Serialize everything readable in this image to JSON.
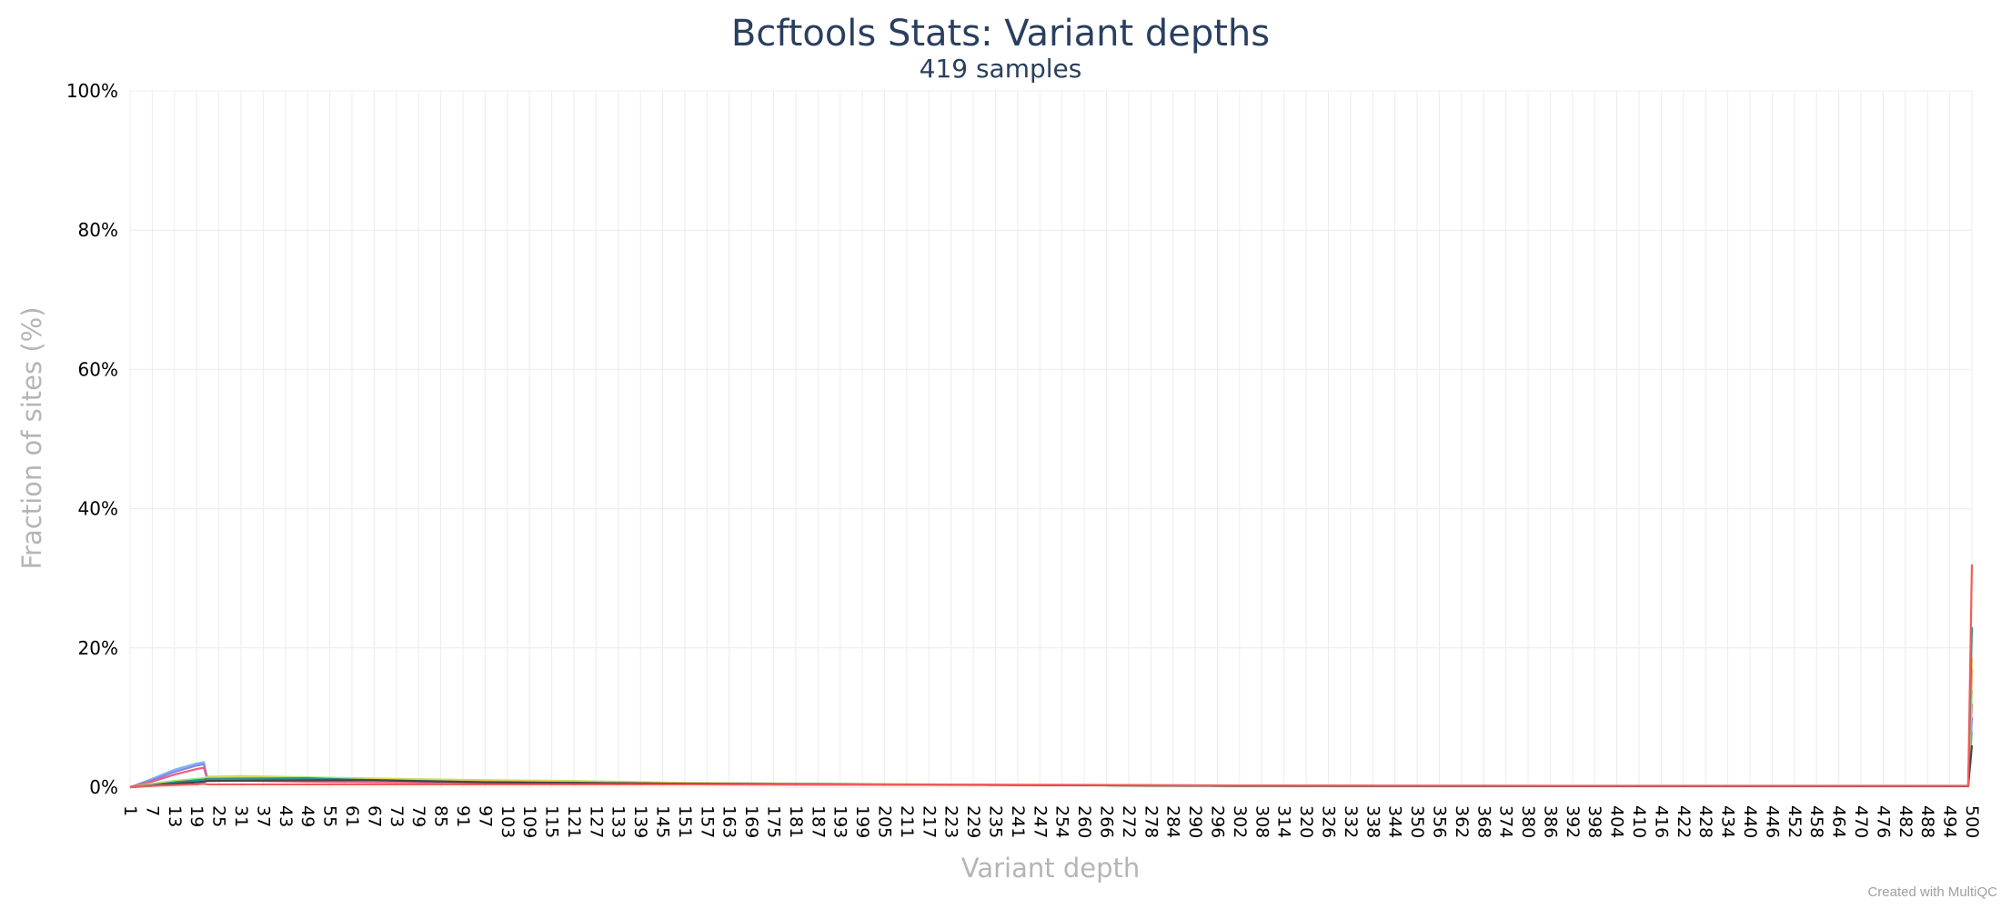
{
  "chart_data": {
    "type": "line",
    "title": "Bcftools Stats: Variant depths",
    "subtitle": "419 samples",
    "xlabel": "Variant depth",
    "ylabel": "Fraction of sites (%)",
    "ylim": [
      0,
      100
    ],
    "y_ticks": [
      0,
      20,
      40,
      60,
      80,
      100
    ],
    "y_tick_labels": [
      "0%",
      "20%",
      "40%",
      "60%",
      "80%",
      "100%"
    ],
    "x_tick_labels": [
      "1",
      "7",
      "13",
      "19",
      "25",
      "31",
      "37",
      "43",
      "49",
      "55",
      "61",
      "67",
      "73",
      "79",
      "85",
      "91",
      "97",
      "103",
      "109",
      "115",
      "121",
      "127",
      "133",
      "139",
      "145",
      "151",
      "157",
      "163",
      "169",
      "175",
      "181",
      "187",
      "193",
      "199",
      "205",
      "211",
      "217",
      "223",
      "229",
      "235",
      "241",
      "247",
      "254",
      "260",
      "266",
      "272",
      "278",
      "284",
      "290",
      "296",
      "302",
      "308",
      "314",
      "320",
      "326",
      "332",
      "338",
      "344",
      "350",
      "356",
      "362",
      "368",
      "374",
      "380",
      "386",
      "392",
      "398",
      "404",
      "410",
      "416",
      "422",
      "428",
      "434",
      "440",
      "446",
      "452",
      "458",
      "464",
      "470",
      "476",
      "482",
      "488",
      "494",
      "500"
    ],
    "grid": true,
    "legend": "none",
    "series": [
      {
        "color": "#7cb5ec",
        "points": [
          [
            1,
            0
          ],
          [
            7,
            1.2
          ],
          [
            13,
            2.5
          ],
          [
            19,
            3.4
          ],
          [
            21,
            3.6
          ],
          [
            22,
            1.0
          ],
          [
            49,
            0.9
          ],
          [
            97,
            0.6
          ],
          [
            151,
            0.4
          ],
          [
            250,
            0.3
          ],
          [
            300,
            0.2
          ],
          [
            400,
            0.15
          ],
          [
            499,
            0.15
          ],
          [
            500,
            8
          ]
        ]
      },
      {
        "color": "#8085e9",
        "points": [
          [
            1,
            0
          ],
          [
            7,
            1.0
          ],
          [
            13,
            2.2
          ],
          [
            19,
            3.1
          ],
          [
            21,
            3.3
          ],
          [
            22,
            1.2
          ],
          [
            49,
            1.1
          ],
          [
            97,
            0.7
          ],
          [
            151,
            0.5
          ],
          [
            250,
            0.3
          ],
          [
            300,
            0.2
          ],
          [
            400,
            0.15
          ],
          [
            499,
            0.15
          ],
          [
            500,
            10
          ]
        ]
      },
      {
        "color": "#f15c80",
        "points": [
          [
            1,
            0
          ],
          [
            7,
            0.8
          ],
          [
            13,
            1.8
          ],
          [
            19,
            2.6
          ],
          [
            21,
            2.8
          ],
          [
            22,
            1.0
          ],
          [
            49,
            0.8
          ],
          [
            97,
            0.6
          ],
          [
            151,
            0.4
          ],
          [
            250,
            0.3
          ],
          [
            300,
            0.2
          ],
          [
            400,
            0.15
          ],
          [
            499,
            0.15
          ],
          [
            500,
            12
          ]
        ]
      },
      {
        "color": "#90ed7d",
        "points": [
          [
            1,
            0
          ],
          [
            7,
            0.5
          ],
          [
            13,
            0.9
          ],
          [
            19,
            1.2
          ],
          [
            21,
            1.3
          ],
          [
            22,
            1.5
          ],
          [
            31,
            1.6
          ],
          [
            49,
            1.4
          ],
          [
            97,
            1.0
          ],
          [
            121,
            0.9
          ],
          [
            151,
            0.6
          ],
          [
            250,
            0.3
          ],
          [
            300,
            0.2
          ],
          [
            400,
            0.15
          ],
          [
            499,
            0.15
          ],
          [
            500,
            14
          ]
        ]
      },
      {
        "color": "#e4d354",
        "points": [
          [
            1,
            0
          ],
          [
            7,
            0.4
          ],
          [
            13,
            0.8
          ],
          [
            19,
            1.0
          ],
          [
            21,
            1.1
          ],
          [
            22,
            1.4
          ],
          [
            31,
            1.5
          ],
          [
            49,
            1.3
          ],
          [
            97,
            1.0
          ],
          [
            115,
            0.9
          ],
          [
            151,
            0.6
          ],
          [
            250,
            0.3
          ],
          [
            300,
            0.2
          ],
          [
            400,
            0.15
          ],
          [
            499,
            0.15
          ],
          [
            500,
            18.5
          ]
        ]
      },
      {
        "color": "#f7a35c",
        "points": [
          [
            1,
            0
          ],
          [
            7,
            0.3
          ],
          [
            13,
            0.6
          ],
          [
            19,
            0.8
          ],
          [
            21,
            0.9
          ],
          [
            22,
            1.0
          ],
          [
            49,
            1.0
          ],
          [
            97,
            0.8
          ],
          [
            151,
            0.5
          ],
          [
            250,
            0.3
          ],
          [
            300,
            0.2
          ],
          [
            400,
            0.15
          ],
          [
            499,
            0.15
          ],
          [
            500,
            17
          ]
        ]
      },
      {
        "color": "#2b908f",
        "points": [
          [
            1,
            0
          ],
          [
            7,
            0.3
          ],
          [
            13,
            0.7
          ],
          [
            19,
            1.0
          ],
          [
            21,
            1.1
          ],
          [
            22,
            1.2
          ],
          [
            49,
            1.3
          ],
          [
            61,
            1.1
          ],
          [
            97,
            0.7
          ],
          [
            151,
            0.5
          ],
          [
            250,
            0.3
          ],
          [
            300,
            0.2
          ],
          [
            400,
            0.15
          ],
          [
            499,
            0.15
          ],
          [
            500,
            23
          ]
        ]
      },
      {
        "color": "#434348",
        "points": [
          [
            1,
            0
          ],
          [
            7,
            0.2
          ],
          [
            13,
            0.5
          ],
          [
            19,
            0.7
          ],
          [
            21,
            0.8
          ],
          [
            22,
            0.9
          ],
          [
            49,
            1.0
          ],
          [
            67,
            1.0
          ],
          [
            97,
            0.7
          ],
          [
            151,
            0.5
          ],
          [
            250,
            0.3
          ],
          [
            300,
            0.2
          ],
          [
            400,
            0.15
          ],
          [
            499,
            0.15
          ],
          [
            500,
            6
          ]
        ]
      },
      {
        "color": "#f45b5b",
        "points": [
          [
            1,
            0
          ],
          [
            7,
            0.2
          ],
          [
            13,
            0.3
          ],
          [
            19,
            0.4
          ],
          [
            21,
            0.5
          ],
          [
            22,
            0.4
          ],
          [
            49,
            0.4
          ],
          [
            97,
            0.4
          ],
          [
            151,
            0.4
          ],
          [
            250,
            0.35
          ],
          [
            300,
            0.25
          ],
          [
            400,
            0.2
          ],
          [
            499,
            0.2
          ],
          [
            500,
            32
          ]
        ]
      }
    ]
  },
  "footer": {
    "credit": "Created with MultiQC"
  }
}
